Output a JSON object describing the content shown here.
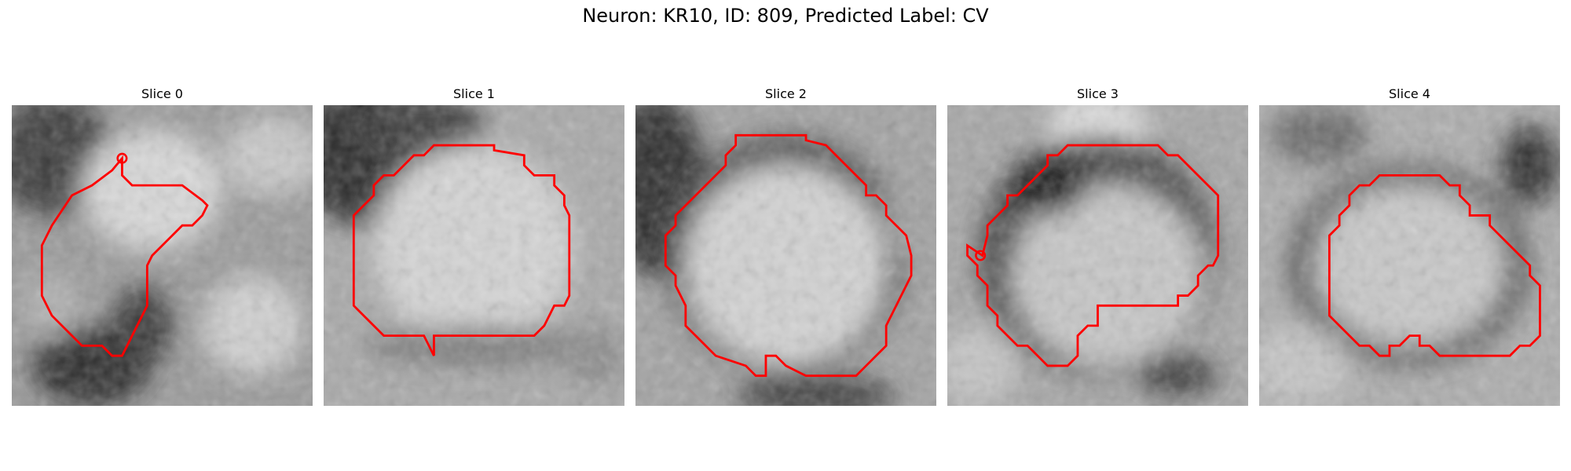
{
  "figure": {
    "title": "Neuron: KR10, ID: 809, Predicted Label: CV"
  },
  "panels": [
    {
      "title": "Slice 0"
    },
    {
      "title": "Slice 1"
    },
    {
      "title": "Slice 2"
    },
    {
      "title": "Slice 3"
    },
    {
      "title": "Slice 4"
    }
  ],
  "colors": {
    "contour": "#ff0000",
    "background": "#ffffff"
  }
}
